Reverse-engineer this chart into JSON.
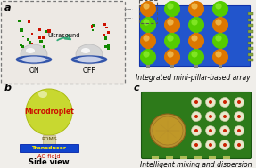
{
  "panel_a_label": "a",
  "panel_b_label": "b",
  "panel_c_label": "c",
  "panel_a_title": "Ultrasound",
  "panel_a_on": "ON",
  "panel_a_off": "OFF",
  "panel_b_droplet_label": "Microdroplet",
  "panel_b_pdms": "PDMS",
  "panel_b_transducer": "Transducer",
  "panel_b_acfield": "AC field",
  "panel_b_caption": "Side view",
  "panel_right_top_caption": "Integrated mini-pillar-based array",
  "panel_right_bot_caption": "Intelligent mixing and dispersion",
  "bg_color": "#f0eeea",
  "board_color": "#2255cc",
  "ball_orange": "#dd7700",
  "ball_green_bright": "#55cc00",
  "ball_green_dark": "#33aa00",
  "microdroplet_color": "#c8d830",
  "transducer_color": "#1144cc",
  "pdms_color": "#d8d8b0",
  "pcb_color": "#2d7a1a",
  "coin_color": "#b89030",
  "pad_white": "#e8e8cc",
  "pad_red": "#cc2200",
  "fig_width": 2.87,
  "fig_height": 1.89
}
